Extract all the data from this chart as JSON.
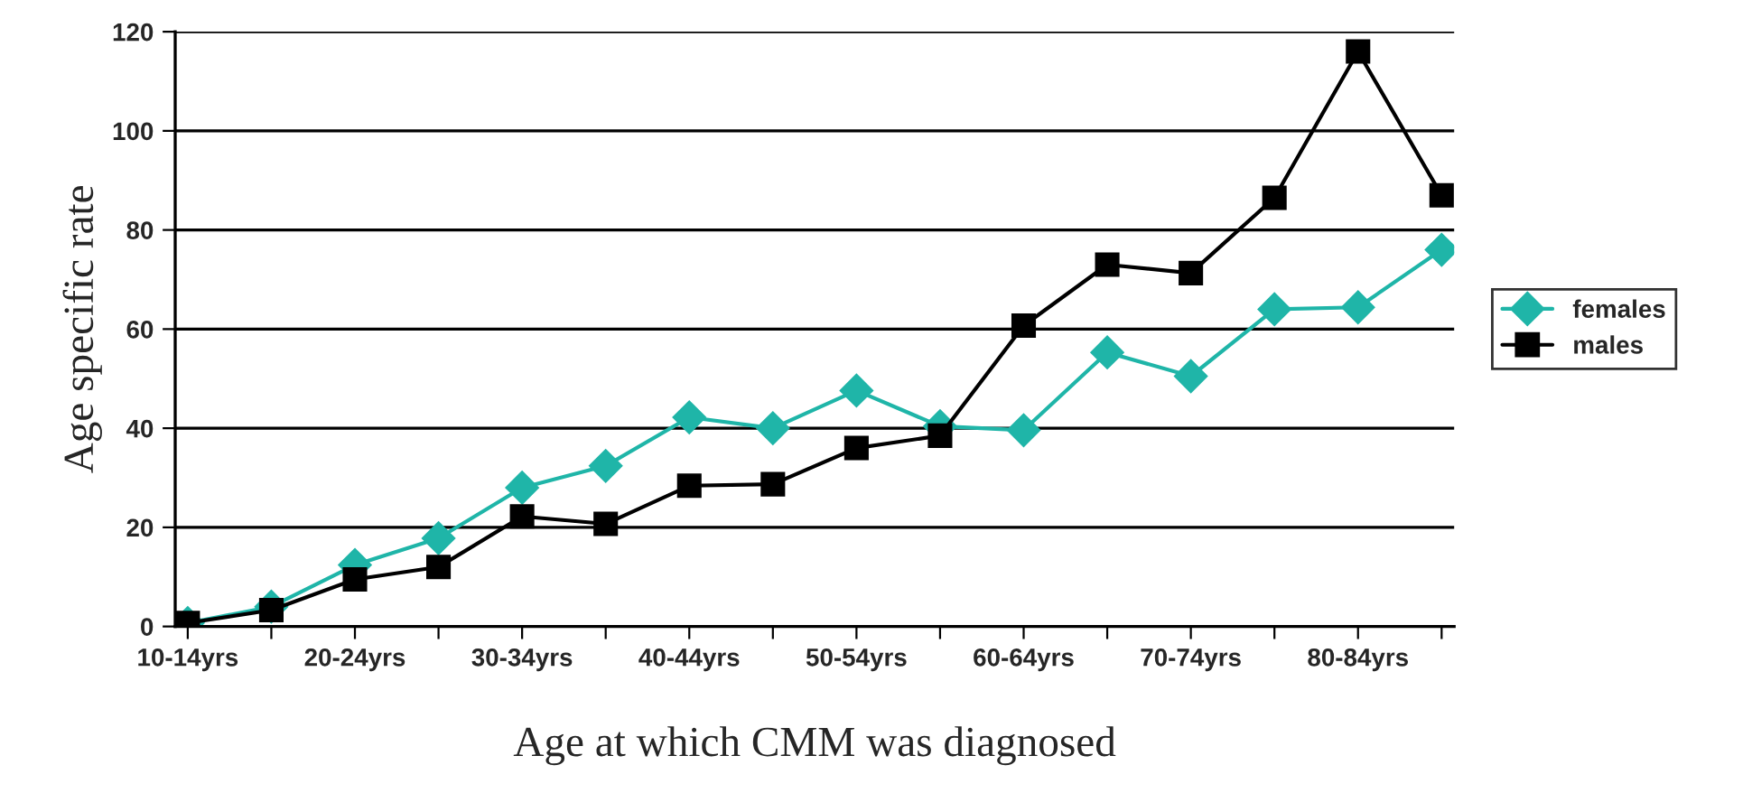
{
  "chart_data": {
    "type": "line",
    "xlabel": "Age at which CMM was diagnosed",
    "ylabel": "Age specific rate",
    "categories": [
      "10-14yrs",
      null,
      "20-24yrs",
      null,
      "30-34yrs",
      null,
      "40-44yrs",
      null,
      "50-54yrs",
      null,
      "60-64yrs",
      null,
      "70-74yrs",
      null,
      "80-84yrs",
      null
    ],
    "series": [
      {
        "name": "females",
        "color": "#1fb5a8",
        "marker": "diamond",
        "values": [
          0.7,
          4,
          12.4,
          17.8,
          28,
          32.4,
          42.2,
          40,
          47.6,
          40.4,
          39.6,
          55.3,
          50.5,
          64,
          64.4,
          76
        ]
      },
      {
        "name": "males",
        "color": "#000000",
        "marker": "square",
        "values": [
          0.7,
          3.3,
          9.5,
          12,
          22.2,
          20.7,
          28.4,
          28.7,
          36,
          38.5,
          60.7,
          73,
          71.3,
          86.5,
          116,
          87
        ]
      }
    ],
    "ylim": [
      0,
      120
    ],
    "yticks": [
      0,
      20,
      40,
      60,
      80,
      100,
      120
    ],
    "grid": "y",
    "legend": "right",
    "line_style": "solid"
  }
}
